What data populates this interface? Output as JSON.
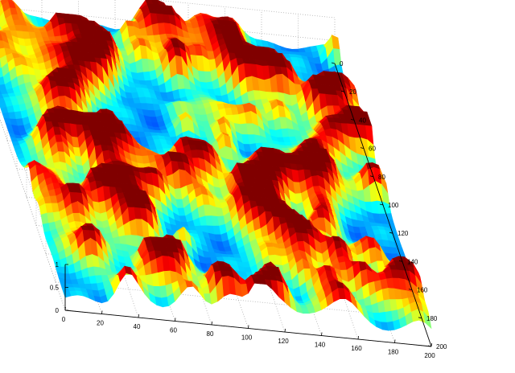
{
  "chart_data": {
    "type": "surface",
    "title": "",
    "xlabel": "",
    "ylabel": "",
    "zlabel": "",
    "colormap": "jet",
    "grid": true,
    "xlim": [
      0,
      200
    ],
    "ylim": [
      0,
      200
    ],
    "zlim": [
      0,
      1
    ],
    "x_ticks": [
      "0",
      "20",
      "40",
      "60",
      "80",
      "100",
      "120",
      "140",
      "160",
      "180",
      "200"
    ],
    "y_ticks": [
      "0",
      "20",
      "40",
      "60",
      "80",
      "100",
      "120",
      "140",
      "160",
      "180",
      "200"
    ],
    "z_ticks": [
      "0",
      "0.5",
      "1"
    ],
    "surface": {
      "description_of_values": "random bumpy field with values between 0 and 1",
      "resolution": [
        60,
        60
      ]
    }
  }
}
